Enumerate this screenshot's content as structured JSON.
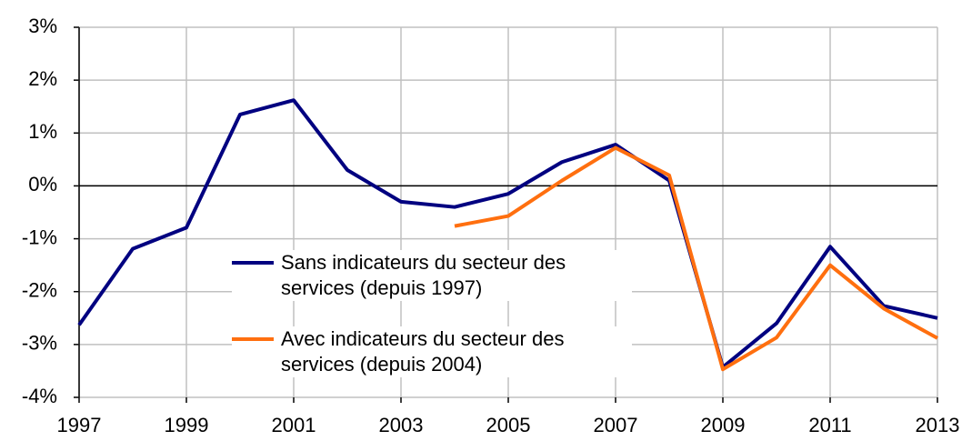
{
  "chart_data": {
    "type": "line",
    "x": [
      1997,
      1998,
      1999,
      2000,
      2001,
      2002,
      2003,
      2004,
      2005,
      2006,
      2007,
      2008,
      2009,
      2010,
      2011,
      2012,
      2013
    ],
    "series": [
      {
        "name": "Sans indicateurs du secteur des services (depuis 1997)",
        "color": "#000080",
        "values": [
          -2.63,
          -1.19,
          -0.79,
          1.35,
          1.62,
          0.3,
          -0.3,
          -0.4,
          -0.15,
          0.45,
          0.78,
          0.1,
          -3.43,
          -2.6,
          -1.15,
          -2.27,
          -2.5
        ]
      },
      {
        "name": "Avec indicateurs du secteur des services (depuis 2004)",
        "color": "#ff6f0f",
        "values": [
          null,
          null,
          null,
          null,
          null,
          null,
          null,
          -0.76,
          -0.57,
          0.1,
          0.72,
          0.2,
          -3.47,
          -2.87,
          -1.5,
          -2.32,
          -2.88
        ]
      }
    ],
    "xlim": [
      1997,
      2013
    ],
    "xticks": [
      1997,
      1999,
      2001,
      2003,
      2005,
      2007,
      2009,
      2011,
      2013
    ],
    "ylim": [
      -4,
      3
    ],
    "yticks": [
      {
        "value": -4,
        "label": "-4%"
      },
      {
        "value": -3,
        "label": "-3%"
      },
      {
        "value": -2,
        "label": "-2%"
      },
      {
        "value": -1,
        "label": "-1%"
      },
      {
        "value": 0,
        "label": "0%"
      },
      {
        "value": 1,
        "label": "1%"
      },
      {
        "value": 2,
        "label": "2%"
      },
      {
        "value": 3,
        "label": "3%"
      }
    ],
    "grid": true,
    "legend": "lower center"
  }
}
